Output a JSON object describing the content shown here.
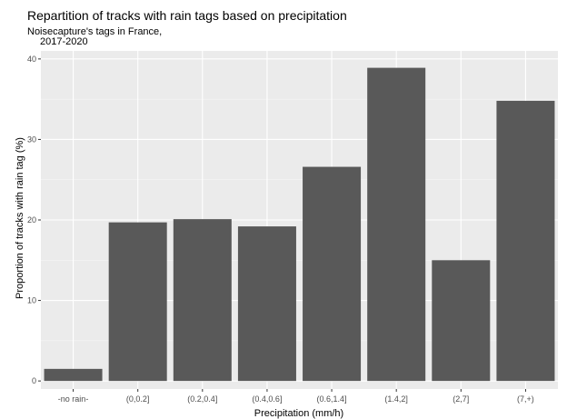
{
  "chart_data": {
    "type": "bar",
    "title": "Repartition of tracks with rain tags based on precipitation",
    "subtitle_lines": [
      "Noisecapture's tags in France,",
      "2017-2020"
    ],
    "xlabel": "Precipitation (mm/h)",
    "ylabel": "Proportion of tracks with rain tag (%)",
    "categories": [
      "-no rain-",
      "(0,0.2]",
      "(0.2,0.4]",
      "(0.4,0.6]",
      "(0.6,1.4]",
      "(1.4,2]",
      "(2,7]",
      "(7,+)"
    ],
    "values": [
      1.5,
      19.7,
      20.1,
      19.2,
      26.6,
      38.9,
      15.0,
      34.8
    ],
    "ylim": [
      -1,
      41
    ],
    "yticks": [
      0,
      10,
      20,
      30,
      40
    ],
    "grid": true,
    "legend": "none",
    "colors": {
      "bar": "#595959",
      "panel": "#ebebeb",
      "grid_major": "#ffffff",
      "grid_minor": "#f5f5f5"
    }
  }
}
